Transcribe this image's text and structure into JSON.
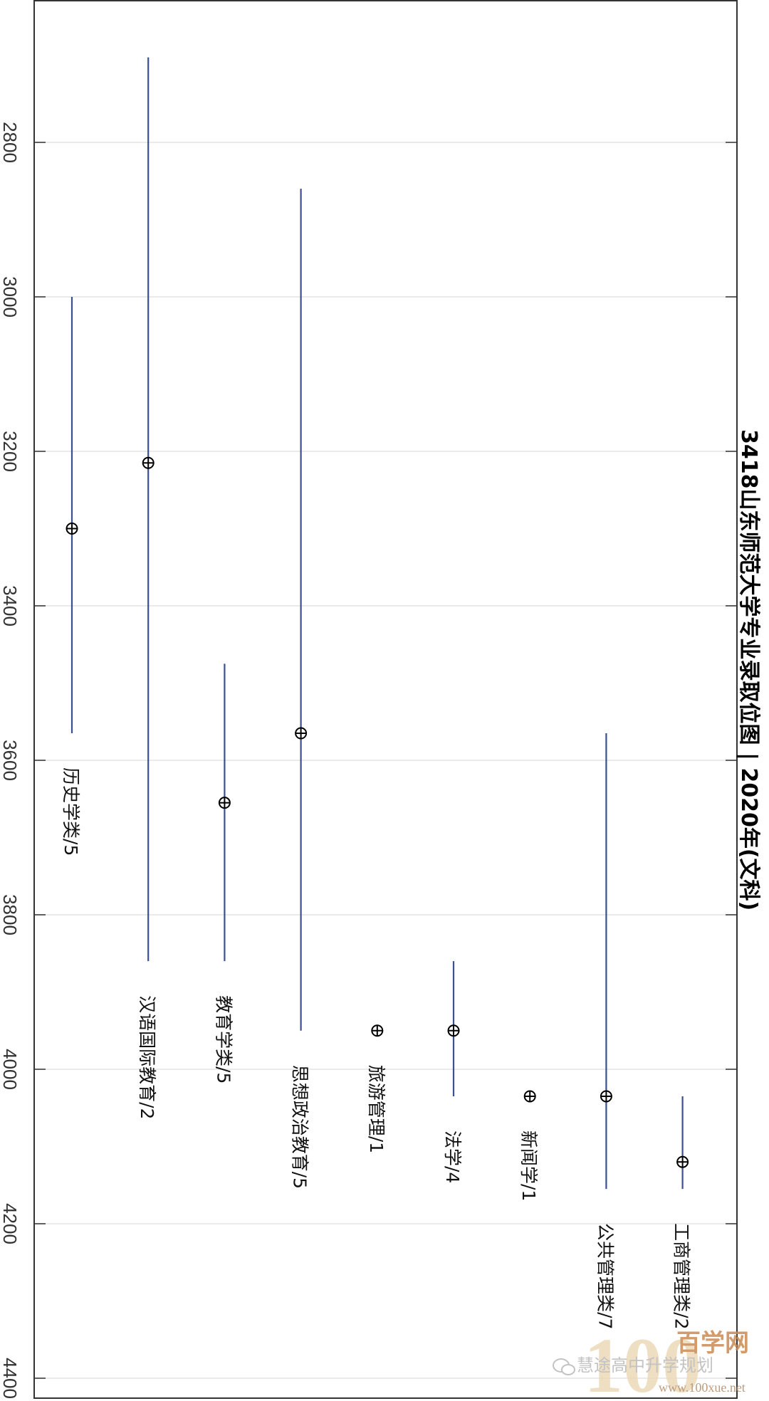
{
  "chart_data": {
    "type": "range",
    "title": "3418山东师范大学专业录取位图 | 2020年(文科)",
    "axis": {
      "min": 2620,
      "max": 4430,
      "ticks": [
        2800,
        3000,
        3200,
        3400,
        3600,
        3800,
        4000,
        4200,
        4400
      ]
    },
    "grid": true,
    "categories": [
      {
        "label": "历史学类/5",
        "low": 3000,
        "high": 3565,
        "mid": 3300
      },
      {
        "label": "汉语国际教育/2",
        "low": 2690,
        "high": 3860,
        "mid": 3215
      },
      {
        "label": "教育学类/5",
        "low": 3475,
        "high": 3860,
        "mid": 3655
      },
      {
        "label": "思想政治教育/5",
        "low": 2860,
        "high": 3950,
        "mid": 3565
      },
      {
        "label": "旅游管理/1",
        "low": 3950,
        "high": 3950,
        "mid": 3950
      },
      {
        "label": "法学/4",
        "low": 3860,
        "high": 4035,
        "mid": 3950
      },
      {
        "label": "新闻学/1",
        "low": 4035,
        "high": 4035,
        "mid": 4035
      },
      {
        "label": "公共管理类/7",
        "low": 3565,
        "high": 4155,
        "mid": 4035
      },
      {
        "label": "工商管理类/2",
        "low": 4035,
        "high": 4155,
        "mid": 4120
      }
    ],
    "colors": {
      "range_line": "#3b4f93",
      "marker": "#000000",
      "grid": "#e3e3e3",
      "frame": "#333333"
    }
  },
  "watermark": {
    "account": "慧途高中升学规划",
    "brand": "百学网",
    "url": "www.100xue.net",
    "big": "100"
  }
}
